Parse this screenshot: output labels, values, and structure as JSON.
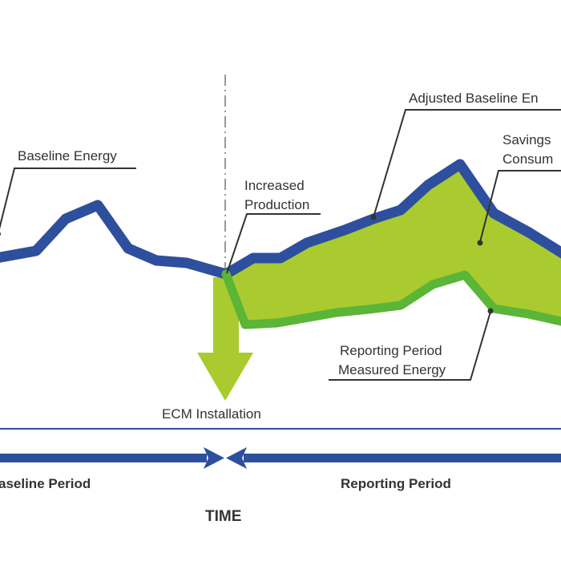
{
  "labels": {
    "baseline_energy": "Baseline Energy",
    "increased_production_line1": "Increased",
    "increased_production_line2": "Production",
    "adjusted_baseline": "Adjusted Baseline En",
    "savings_line1": "Savings",
    "savings_line2": "Consum",
    "reporting_measured_line1": "Reporting Period",
    "reporting_measured_line2": "Measured Energy",
    "ecm_installation": "ECM Installation",
    "baseline_period": "aseline Period",
    "reporting_period": "Reporting Period",
    "time": "TIME"
  },
  "colors": {
    "baseline_line": "#2e4f9e",
    "measured_line": "#5bb537",
    "savings_fill": "#a9cb2f",
    "ecm_arrow": "#a9cb2f",
    "period_arrow": "#2e4f9e",
    "divider": "#999999",
    "text": "#333333"
  }
}
